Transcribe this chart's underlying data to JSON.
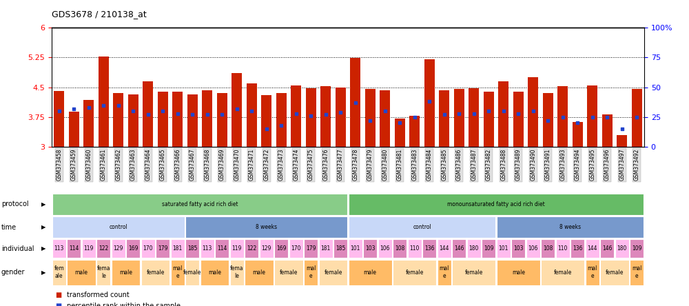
{
  "title": "GDS3678 / 210138_at",
  "samples": [
    "GSM373458",
    "GSM373459",
    "GSM373460",
    "GSM373461",
    "GSM373462",
    "GSM373463",
    "GSM373464",
    "GSM373465",
    "GSM373466",
    "GSM373467",
    "GSM373468",
    "GSM373469",
    "GSM373470",
    "GSM373471",
    "GSM373472",
    "GSM373473",
    "GSM373474",
    "GSM373475",
    "GSM373476",
    "GSM373477",
    "GSM373478",
    "GSM373479",
    "GSM373480",
    "GSM373481",
    "GSM373483",
    "GSM373484",
    "GSM373485",
    "GSM373486",
    "GSM373487",
    "GSM373482",
    "GSM373488",
    "GSM373489",
    "GSM373490",
    "GSM373491",
    "GSM373493",
    "GSM373494",
    "GSM373495",
    "GSM373496",
    "GSM373497",
    "GSM373492"
  ],
  "bar_values": [
    4.4,
    3.88,
    4.18,
    5.28,
    4.35,
    4.32,
    4.65,
    4.38,
    4.38,
    4.32,
    4.43,
    4.36,
    4.85,
    4.6,
    4.3,
    4.35,
    4.55,
    4.48,
    4.52,
    4.49,
    5.24,
    4.46,
    4.43,
    3.72,
    3.78,
    5.2,
    4.43,
    4.45,
    4.47,
    4.38,
    4.65,
    4.38,
    4.75,
    4.35,
    4.53,
    3.62,
    4.55,
    3.82,
    3.3,
    4.46
  ],
  "percentile_values": [
    30,
    32,
    33,
    35,
    35,
    30,
    27,
    30,
    28,
    27,
    27,
    27,
    32,
    30,
    15,
    18,
    28,
    26,
    27,
    29,
    37,
    22,
    30,
    20,
    25,
    38,
    27,
    28,
    28,
    30,
    30,
    28,
    30,
    22,
    25,
    20,
    25,
    25,
    15,
    25
  ],
  "ylim_left": [
    3.0,
    6.0
  ],
  "ylim_right": [
    0,
    100
  ],
  "yticks_left": [
    3.0,
    3.75,
    4.5,
    5.25,
    6.0
  ],
  "ytick_labels_left": [
    "3",
    "3.75",
    "4.5",
    "5.25",
    "6"
  ],
  "yticks_right": [
    0,
    25,
    50,
    75,
    100
  ],
  "ytick_labels_right": [
    "0",
    "25",
    "50",
    "75",
    "100%"
  ],
  "hlines": [
    3.75,
    4.5,
    5.25
  ],
  "bar_color": "#cc2200",
  "marker_color": "#2244cc",
  "bar_width": 0.7,
  "legend_items": [
    {
      "label": "transformed count",
      "color": "#cc2200"
    },
    {
      "label": "percentile rank within the sample",
      "color": "#2244cc"
    }
  ],
  "protocol_groups": [
    {
      "label": "saturated fatty acid rich diet",
      "start": 0,
      "end": 20,
      "color": "#88cc88"
    },
    {
      "label": "monounsaturated fatty acid rich diet",
      "start": 20,
      "end": 40,
      "color": "#66bb66"
    }
  ],
  "time_groups": [
    {
      "label": "control",
      "start": 0,
      "end": 9,
      "color": "#c8d8f8"
    },
    {
      "label": "8 weeks",
      "start": 9,
      "end": 20,
      "color": "#7799cc"
    },
    {
      "label": "control",
      "start": 20,
      "end": 30,
      "color": "#c8d8f8"
    },
    {
      "label": "8 weeks",
      "start": 30,
      "end": 40,
      "color": "#7799cc"
    }
  ],
  "individual_groups": [
    {
      "label": "113",
      "start": 0,
      "end": 1,
      "color": "#ffbbee"
    },
    {
      "label": "114",
      "start": 1,
      "end": 2,
      "color": "#dd88bb"
    },
    {
      "label": "119",
      "start": 2,
      "end": 3,
      "color": "#ffbbee"
    },
    {
      "label": "122",
      "start": 3,
      "end": 4,
      "color": "#dd88bb"
    },
    {
      "label": "129",
      "start": 4,
      "end": 5,
      "color": "#ffbbee"
    },
    {
      "label": "169",
      "start": 5,
      "end": 6,
      "color": "#dd88bb"
    },
    {
      "label": "170",
      "start": 6,
      "end": 7,
      "color": "#ffbbee"
    },
    {
      "label": "179",
      "start": 7,
      "end": 8,
      "color": "#dd88bb"
    },
    {
      "label": "181",
      "start": 8,
      "end": 9,
      "color": "#ffbbee"
    },
    {
      "label": "185",
      "start": 9,
      "end": 10,
      "color": "#dd88bb"
    },
    {
      "label": "113",
      "start": 10,
      "end": 11,
      "color": "#ffbbee"
    },
    {
      "label": "114",
      "start": 11,
      "end": 12,
      "color": "#dd88bb"
    },
    {
      "label": "119",
      "start": 12,
      "end": 13,
      "color": "#ffbbee"
    },
    {
      "label": "122",
      "start": 13,
      "end": 14,
      "color": "#dd88bb"
    },
    {
      "label": "129",
      "start": 14,
      "end": 15,
      "color": "#ffbbee"
    },
    {
      "label": "169",
      "start": 15,
      "end": 16,
      "color": "#dd88bb"
    },
    {
      "label": "170",
      "start": 16,
      "end": 17,
      "color": "#ffbbee"
    },
    {
      "label": "179",
      "start": 17,
      "end": 18,
      "color": "#dd88bb"
    },
    {
      "label": "181",
      "start": 18,
      "end": 19,
      "color": "#ffbbee"
    },
    {
      "label": "185",
      "start": 19,
      "end": 20,
      "color": "#dd88bb"
    },
    {
      "label": "101",
      "start": 20,
      "end": 21,
      "color": "#ffbbee"
    },
    {
      "label": "103",
      "start": 21,
      "end": 22,
      "color": "#dd88bb"
    },
    {
      "label": "106",
      "start": 22,
      "end": 23,
      "color": "#ffbbee"
    },
    {
      "label": "108",
      "start": 23,
      "end": 24,
      "color": "#dd88bb"
    },
    {
      "label": "110",
      "start": 24,
      "end": 25,
      "color": "#ffbbee"
    },
    {
      "label": "136",
      "start": 25,
      "end": 26,
      "color": "#dd88bb"
    },
    {
      "label": "144",
      "start": 26,
      "end": 27,
      "color": "#ffbbee"
    },
    {
      "label": "146",
      "start": 27,
      "end": 28,
      "color": "#dd88bb"
    },
    {
      "label": "180",
      "start": 28,
      "end": 29,
      "color": "#ffbbee"
    },
    {
      "label": "109",
      "start": 29,
      "end": 30,
      "color": "#dd88bb"
    },
    {
      "label": "101",
      "start": 30,
      "end": 31,
      "color": "#ffbbee"
    },
    {
      "label": "103",
      "start": 31,
      "end": 32,
      "color": "#dd88bb"
    },
    {
      "label": "106",
      "start": 32,
      "end": 33,
      "color": "#ffbbee"
    },
    {
      "label": "108",
      "start": 33,
      "end": 34,
      "color": "#dd88bb"
    },
    {
      "label": "110",
      "start": 34,
      "end": 35,
      "color": "#ffbbee"
    },
    {
      "label": "136",
      "start": 35,
      "end": 36,
      "color": "#dd88bb"
    },
    {
      "label": "144",
      "start": 36,
      "end": 37,
      "color": "#ffbbee"
    },
    {
      "label": "146",
      "start": 37,
      "end": 38,
      "color": "#dd88bb"
    },
    {
      "label": "180",
      "start": 38,
      "end": 39,
      "color": "#ffbbee"
    },
    {
      "label": "109",
      "start": 39,
      "end": 40,
      "color": "#dd88bb"
    }
  ],
  "gender_groups": [
    {
      "label": "fem\nale",
      "start": 0,
      "end": 1,
      "color": "#ffddaa"
    },
    {
      "label": "male",
      "start": 1,
      "end": 3,
      "color": "#ffbb66"
    },
    {
      "label": "fema\nle",
      "start": 3,
      "end": 4,
      "color": "#ffddaa"
    },
    {
      "label": "male",
      "start": 4,
      "end": 6,
      "color": "#ffbb66"
    },
    {
      "label": "female",
      "start": 6,
      "end": 8,
      "color": "#ffddaa"
    },
    {
      "label": "mal\ne",
      "start": 8,
      "end": 9,
      "color": "#ffbb66"
    },
    {
      "label": "female",
      "start": 9,
      "end": 10,
      "color": "#ffddaa"
    },
    {
      "label": "male",
      "start": 10,
      "end": 12,
      "color": "#ffbb66"
    },
    {
      "label": "fema\nle",
      "start": 12,
      "end": 13,
      "color": "#ffddaa"
    },
    {
      "label": "male",
      "start": 13,
      "end": 15,
      "color": "#ffbb66"
    },
    {
      "label": "female",
      "start": 15,
      "end": 17,
      "color": "#ffddaa"
    },
    {
      "label": "mal\ne",
      "start": 17,
      "end": 18,
      "color": "#ffbb66"
    },
    {
      "label": "female",
      "start": 18,
      "end": 20,
      "color": "#ffddaa"
    },
    {
      "label": "male",
      "start": 20,
      "end": 23,
      "color": "#ffbb66"
    },
    {
      "label": "female",
      "start": 23,
      "end": 26,
      "color": "#ffddaa"
    },
    {
      "label": "mal\ne",
      "start": 26,
      "end": 27,
      "color": "#ffbb66"
    },
    {
      "label": "female",
      "start": 27,
      "end": 30,
      "color": "#ffddaa"
    },
    {
      "label": "male",
      "start": 30,
      "end": 33,
      "color": "#ffbb66"
    },
    {
      "label": "female",
      "start": 33,
      "end": 36,
      "color": "#ffddaa"
    },
    {
      "label": "mal\ne",
      "start": 36,
      "end": 37,
      "color": "#ffbb66"
    },
    {
      "label": "female",
      "start": 37,
      "end": 39,
      "color": "#ffddaa"
    },
    {
      "label": "mal\ne",
      "start": 39,
      "end": 40,
      "color": "#ffbb66"
    }
  ]
}
